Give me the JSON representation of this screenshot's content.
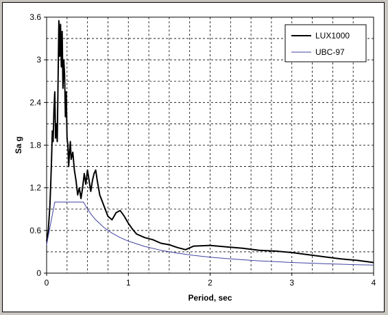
{
  "chart_data": {
    "type": "line",
    "title": "",
    "xlabel": "Period, sec",
    "ylabel": "Sa g",
    "xlim": [
      0,
      4
    ],
    "ylim": [
      0,
      3.6
    ],
    "x_ticks": [
      "0",
      "1",
      "2",
      "3",
      "4"
    ],
    "y_ticks": [
      "0",
      "0.6",
      "1.2",
      "1.8",
      "2.4",
      "3",
      "3.6"
    ],
    "grid": true,
    "legend_position": "top-right",
    "series": [
      {
        "name": "LUX1000",
        "color": "#000000",
        "x": [
          0,
          0.02,
          0.04,
          0.05,
          0.06,
          0.07,
          0.08,
          0.09,
          0.1,
          0.11,
          0.12,
          0.13,
          0.14,
          0.15,
          0.16,
          0.17,
          0.18,
          0.19,
          0.2,
          0.21,
          0.22,
          0.23,
          0.24,
          0.25,
          0.26,
          0.27,
          0.28,
          0.29,
          0.3,
          0.32,
          0.34,
          0.36,
          0.38,
          0.4,
          0.42,
          0.44,
          0.46,
          0.48,
          0.5,
          0.52,
          0.54,
          0.56,
          0.58,
          0.6,
          0.62,
          0.65,
          0.7,
          0.75,
          0.8,
          0.85,
          0.9,
          0.95,
          1.0,
          1.05,
          1.1,
          1.2,
          1.3,
          1.4,
          1.5,
          1.6,
          1.7,
          1.8,
          2.0,
          2.2,
          2.4,
          2.6,
          2.8,
          3.0,
          3.2,
          3.4,
          3.6,
          3.8,
          4.0
        ],
        "y": [
          0.45,
          0.6,
          0.95,
          1.25,
          1.6,
          2.0,
          1.85,
          2.3,
          2.55,
          1.9,
          2.1,
          1.85,
          2.7,
          3.55,
          3.05,
          3.5,
          2.9,
          3.4,
          2.6,
          3.0,
          2.8,
          2.2,
          2.55,
          1.9,
          1.8,
          1.5,
          1.7,
          1.85,
          1.6,
          1.7,
          1.45,
          1.3,
          1.1,
          1.2,
          1.05,
          1.2,
          1.4,
          1.25,
          1.45,
          1.3,
          1.15,
          1.3,
          1.4,
          1.45,
          1.3,
          1.1,
          0.95,
          0.8,
          0.75,
          0.85,
          0.88,
          0.8,
          0.7,
          0.62,
          0.55,
          0.5,
          0.47,
          0.42,
          0.4,
          0.36,
          0.33,
          0.38,
          0.39,
          0.37,
          0.35,
          0.32,
          0.31,
          0.29,
          0.26,
          0.23,
          0.2,
          0.18,
          0.15
        ]
      },
      {
        "name": "UBC-97",
        "color": "#4040a0",
        "x": [
          0,
          0.1,
          0.45,
          0.5,
          0.55,
          0.6,
          0.7,
          0.8,
          0.9,
          1.0,
          1.2,
          1.4,
          1.6,
          1.8,
          2.0,
          2.2,
          2.4,
          2.6,
          2.8,
          3.0,
          3.2,
          3.4,
          3.6,
          3.8,
          4.0
        ],
        "y": [
          0.4,
          1.0,
          1.0,
          0.9,
          0.818,
          0.75,
          0.643,
          0.563,
          0.5,
          0.45,
          0.375,
          0.321,
          0.281,
          0.25,
          0.225,
          0.205,
          0.188,
          0.173,
          0.161,
          0.15,
          0.141,
          0.132,
          0.125,
          0.118,
          0.1125
        ]
      }
    ]
  }
}
